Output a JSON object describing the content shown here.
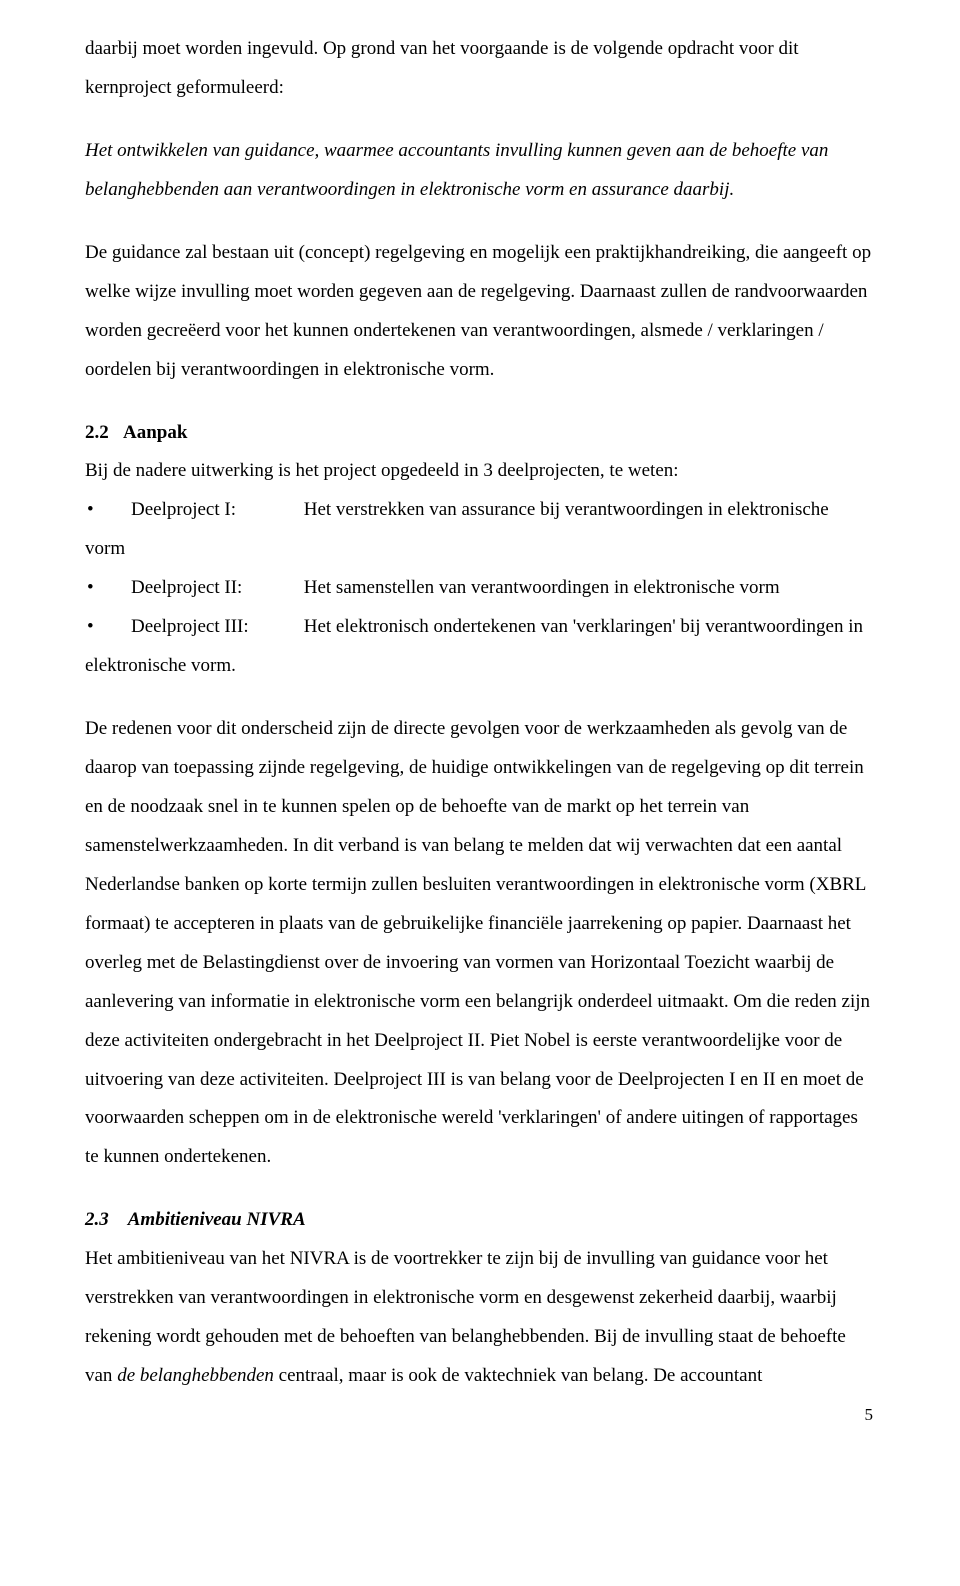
{
  "p1_fragment": "daarbij moet worden ingevuld. Op grond van het voorgaande is de volgende opdracht voor dit kernproject geformuleerd:",
  "p2_italic": "Het ontwikkelen van guidance, waarmee accountants invulling kunnen geven aan de behoefte van belanghebbenden aan verantwoordingen in elektronische vorm en assurance daarbij.",
  "p3": "De guidance zal bestaan uit (concept) regelgeving en mogelijk een praktijkhandreiking, die aangeeft op welke wijze invulling moet worden gegeven aan de regelgeving. Daarnaast zullen de randvoorwaarden worden gecreëerd voor het kunnen ondertekenen van verantwoordingen, alsmede  / verklaringen / oordelen bij verantwoordingen in elektronische vorm.",
  "sec22": {
    "number": "2.2",
    "title": "Aanpak",
    "intro": "Bij de nadere uitwerking is het project opgedeeld in 3 deelprojecten, te weten:",
    "items": [
      {
        "label": "Deelproject I:",
        "text": "Het verstrekken van assurance bij verantwoordingen in elektronische vorm",
        "wrap_below": "vorm"
      },
      {
        "label": "Deelproject II:",
        "text": "Het samenstellen van verantwoordingen in elektronische vorm"
      },
      {
        "label": "Deelproject III:",
        "text": "Het elektronisch ondertekenen van 'verklaringen' bij verantwoordingen in elektronische vorm.",
        "wrap_below": "elektronische vorm."
      }
    ],
    "body": "De redenen voor dit onderscheid zijn de directe gevolgen voor de werkzaamheden als gevolg van de daarop van toepassing zijnde regelgeving, de huidige ontwikkelingen van de regelgeving op dit terrein en de noodzaak snel in te kunnen spelen op de behoefte van de markt op het terrein van samenstelwerkzaamheden. In dit verband is van belang te melden dat wij verwachten dat een aantal Nederlandse banken op korte termijn zullen besluiten verantwoordingen in elektronische vorm (XBRL formaat) te accepteren in plaats van de gebruikelijke financiële jaarrekening op papier. Daarnaast het overleg met de Belastingdienst over de invoering van vormen van Horizontaal Toezicht waarbij de aanlevering van informatie in elektronische vorm een belangrijk onderdeel uitmaakt. Om die reden zijn deze activiteiten ondergebracht in het Deelproject II.  Piet Nobel is eerste verantwoordelijke voor de uitvoering van deze activiteiten. Deelproject III is van belang voor de Deelprojecten I en II en moet de voorwaarden scheppen om in de elektronische wereld 'verklaringen' of andere uitingen of rapportages te kunnen ondertekenen."
  },
  "sec23": {
    "number": "2.3",
    "title": "Ambitieniveau NIVRA",
    "body_pre": "Het ambitieniveau van het NIVRA is de voortrekker te zijn bij de invulling van guidance voor het verstrekken van verantwoordingen in elektronische vorm en desgewenst zekerheid daarbij,  waarbij rekening wordt gehouden met de behoeften van belanghebbenden. Bij de invulling staat de behoefte van ",
    "body_italic": "de belanghebbenden",
    "body_post": " centraal, maar is ook de vaktechniek van belang. De accountant"
  },
  "page_number": "5"
}
